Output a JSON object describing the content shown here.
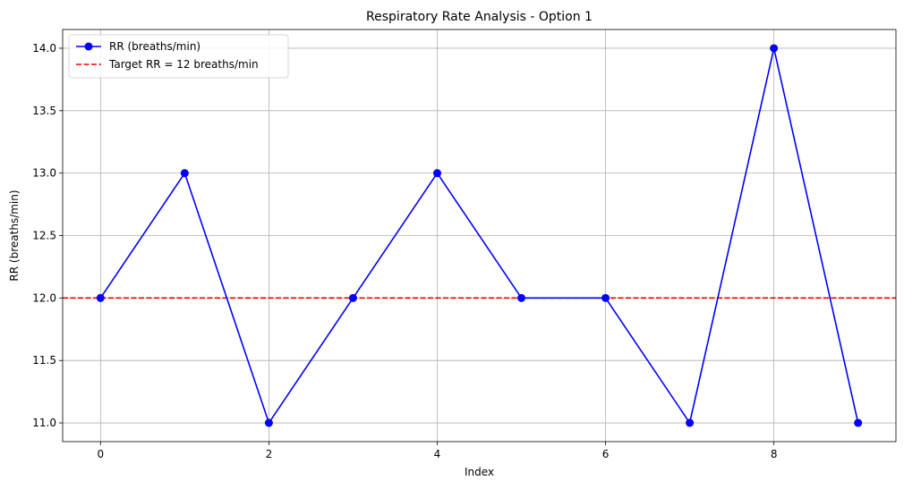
{
  "chart_data": {
    "type": "line",
    "title": "Respiratory Rate Analysis - Option 1",
    "xlabel": "Index",
    "ylabel": "RR (breaths/min)",
    "xlim": [
      -0.45,
      9.45
    ],
    "ylim": [
      10.85,
      14.15
    ],
    "xticks": [
      0,
      2,
      4,
      6,
      8
    ],
    "xtick_labels": [
      "0",
      "2",
      "4",
      "6",
      "8"
    ],
    "yticks": [
      11.0,
      11.5,
      12.0,
      12.5,
      13.0,
      13.5,
      14.0
    ],
    "ytick_labels": [
      "11.0",
      "11.5",
      "12.0",
      "12.5",
      "13.0",
      "13.5",
      "14.0"
    ],
    "grid": true,
    "legend_position": "upper-left",
    "series": [
      {
        "name": "RR (breaths/min)",
        "x": [
          0,
          1,
          2,
          3,
          4,
          5,
          6,
          7,
          8,
          9
        ],
        "values": [
          12,
          13,
          11,
          12,
          13,
          12,
          12,
          11,
          14,
          11
        ],
        "color": "#0000ff",
        "marker": "circle",
        "line_style": "solid"
      }
    ],
    "reference_lines": [
      {
        "name": "Target RR = 12 breaths/min",
        "orientation": "horizontal",
        "y": 12,
        "color": "#ff0000",
        "line_style": "dashed"
      }
    ]
  }
}
